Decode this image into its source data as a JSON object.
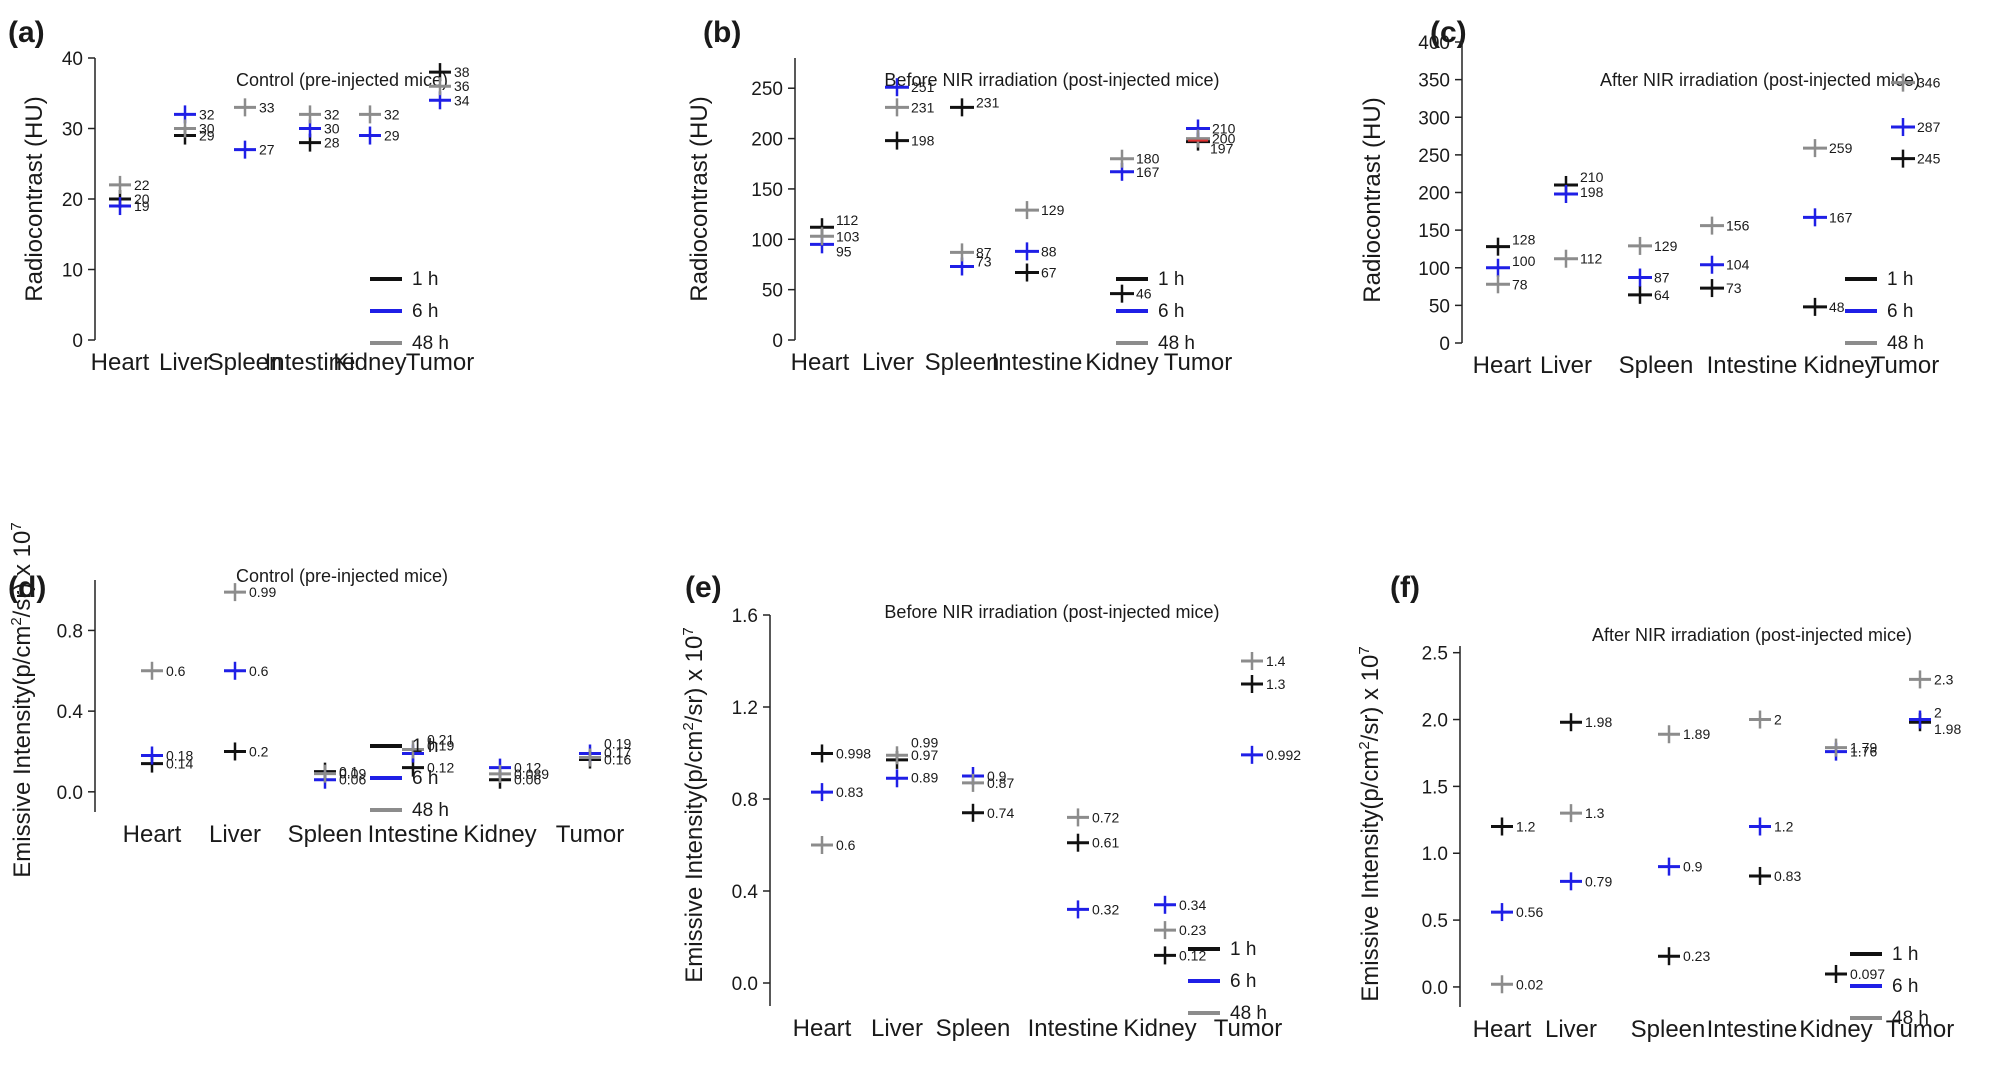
{
  "figure": {
    "colors": {
      "1 h": "#111111",
      "6 h": "#1f1fe6",
      "48 h": "#8c8c8c",
      "accent_red": "#e03030"
    },
    "legend_entries": [
      "1 h",
      "6 h",
      "48 h"
    ]
  },
  "chart_data": [
    {
      "panel": "(a)",
      "type": "scatter",
      "title": "Control (pre-injected mice)",
      "ylabel": "Radiocontrast (HU)",
      "ylim": [
        0,
        40
      ],
      "yticks": [
        0,
        10,
        20,
        30,
        40
      ],
      "categories": [
        "Heart",
        "Liver",
        "Spleen",
        "Intestine",
        "Kidney",
        "Tumor"
      ],
      "series": [
        {
          "name": "1 h",
          "values": [
            20,
            29,
            null,
            28,
            null,
            38
          ],
          "labels": [
            "20",
            "29",
            null,
            "28",
            null,
            "38"
          ]
        },
        {
          "name": "6 h",
          "values": [
            19,
            32,
            27,
            30,
            29,
            34
          ],
          "labels": [
            "19",
            "32",
            "27",
            "30",
            "29",
            "34"
          ]
        },
        {
          "name": "48 h",
          "values": [
            22,
            30,
            33,
            32,
            32,
            36
          ],
          "labels": [
            "22",
            "30",
            "33",
            "32",
            "32",
            "36"
          ]
        }
      ]
    },
    {
      "panel": "(b)",
      "type": "scatter",
      "title": "Before NIR irradiation (post-injected mice)",
      "ylabel": "Radiocontrast (HU)",
      "ylim": [
        0,
        280
      ],
      "yticks": [
        0,
        50,
        100,
        150,
        200,
        250
      ],
      "categories": [
        "Heart",
        "Liver",
        "Spleen",
        "Intestine",
        "Kidney",
        "Tumor"
      ],
      "series": [
        {
          "name": "1 h",
          "values": [
            112,
            198,
            231,
            67,
            46,
            197
          ],
          "labels": [
            "112",
            "198",
            "231",
            "67",
            "46",
            "197"
          ]
        },
        {
          "name": "6 h",
          "values": [
            95,
            251,
            73,
            88,
            167,
            210
          ],
          "labels": [
            "95",
            "251",
            "73",
            "88",
            "167",
            "210"
          ]
        },
        {
          "name": "48 h",
          "values": [
            103,
            231,
            87,
            129,
            180,
            200
          ],
          "labels": [
            "103",
            "231",
            "87",
            "129",
            "180",
            "200"
          ]
        }
      ]
    },
    {
      "panel": "(c)",
      "type": "scatter",
      "title": "After NIR irradiation (post-injected mice)",
      "ylabel": "Radiocontrast (HU)",
      "ylim": [
        0,
        400
      ],
      "yticks": [
        0,
        50,
        100,
        150,
        200,
        250,
        300,
        350,
        400
      ],
      "categories": [
        "Heart",
        "Liver",
        "Spleen",
        "Intestine",
        "Kidney",
        "Tumor"
      ],
      "series": [
        {
          "name": "1 h",
          "values": [
            128,
            210,
            64,
            73,
            48,
            245
          ],
          "labels": [
            "128",
            "210",
            "64",
            "73",
            "48",
            "245"
          ]
        },
        {
          "name": "6 h",
          "values": [
            100,
            198,
            87,
            104,
            167,
            287
          ],
          "labels": [
            "100",
            "198",
            "87",
            "104",
            "167",
            "287"
          ]
        },
        {
          "name": "48 h",
          "values": [
            78,
            112,
            129,
            156,
            259,
            346
          ],
          "labels": [
            "78",
            "112",
            "129",
            "156",
            "259",
            "346"
          ]
        }
      ]
    },
    {
      "panel": "(d)",
      "type": "scatter",
      "title": "Control (pre-injected mice)",
      "ylabel_main": "Emissive Intensity(p/cm",
      "ylabel_sup1": "2",
      "ylabel_mid": "/sr) x 10",
      "ylabel_sup2": "7",
      "ylim": [
        -0.1,
        1.05
      ],
      "yticks": [
        0.0,
        0.4,
        0.8
      ],
      "ytick_labels": [
        "0.0",
        "0.4",
        "0.8"
      ],
      "categories": [
        "Heart",
        "Liver",
        "Spleen",
        "Intestine",
        "Kidney",
        "Tumor"
      ],
      "series": [
        {
          "name": "1 h",
          "values": [
            0.14,
            0.2,
            0.1,
            0.12,
            0.06,
            0.16
          ],
          "labels": [
            "0.14",
            "0.2",
            "0.1",
            "0.12",
            "0.06",
            "0.16"
          ]
        },
        {
          "name": "6 h",
          "values": [
            0.18,
            0.6,
            0.06,
            0.19,
            0.12,
            0.19
          ],
          "labels": [
            "0.18",
            "0.6",
            "0.06",
            "0.19",
            "0.12",
            "0.19"
          ]
        },
        {
          "name": "48 h",
          "values": [
            0.6,
            0.99,
            0.09,
            0.21,
            0.089,
            0.17
          ],
          "labels": [
            "0.6",
            "0.99",
            "0.09",
            "0.21",
            "0.089",
            "0.17"
          ]
        }
      ]
    },
    {
      "panel": "(e)",
      "type": "scatter",
      "title": "Before NIR irradiation (post-injected mice)",
      "ylabel_main": "Emissive Intensity(p/cm",
      "ylabel_sup1": "2",
      "ylabel_mid": "/sr) x 10",
      "ylabel_sup2": "7",
      "ylim": [
        -0.1,
        1.6
      ],
      "yticks": [
        0.0,
        0.4,
        0.8,
        1.2,
        1.6
      ],
      "ytick_labels": [
        "0.0",
        "0.4",
        "0.8",
        "1.2",
        "1.6"
      ],
      "categories": [
        "Heart",
        "Liver",
        "Spleen",
        "Intestine",
        "Kidney",
        "Tumor"
      ],
      "series": [
        {
          "name": "1 h",
          "values": [
            0.998,
            0.97,
            0.74,
            0.61,
            0.12,
            1.3
          ],
          "labels": [
            "0.998",
            "0.97",
            "0.74",
            "0.61",
            "0.12",
            "1.3"
          ]
        },
        {
          "name": "6 h",
          "values": [
            0.83,
            0.89,
            0.9,
            0.32,
            0.34,
            0.992
          ],
          "labels": [
            "0.83",
            "0.89",
            "0.9",
            "0.32",
            "0.34",
            "0.992"
          ]
        },
        {
          "name": "48 h",
          "values": [
            0.6,
            0.99,
            0.87,
            0.72,
            0.23,
            1.4
          ],
          "labels": [
            "0.6",
            "0.99",
            "0.87",
            "0.72",
            "0.23",
            "1.4"
          ]
        }
      ]
    },
    {
      "panel": "(f)",
      "type": "scatter",
      "title": "After NIR irradiation (post-injected mice)",
      "ylabel_main": "Emissive Intensity(p/cm",
      "ylabel_sup1": "2",
      "ylabel_mid": "/sr) x 10",
      "ylabel_sup2": "7",
      "ylim": [
        -0.15,
        2.55
      ],
      "yticks": [
        0.0,
        0.5,
        1.0,
        1.5,
        2.0,
        2.5
      ],
      "ytick_labels": [
        "0.0",
        "0.5",
        "1.0",
        "1.5",
        "2.0",
        "2.5"
      ],
      "categories": [
        "Heart",
        "Liver",
        "Spleen",
        "Intestine",
        "Kidney",
        "Tumor"
      ],
      "series": [
        {
          "name": "1 h",
          "values": [
            1.2,
            1.98,
            0.23,
            0.83,
            0.097,
            1.98
          ],
          "labels": [
            "1.2",
            "1.98",
            "0.23",
            "0.83",
            "0.097",
            "1.98"
          ]
        },
        {
          "name": "6 h",
          "values": [
            0.56,
            0.79,
            0.9,
            1.2,
            1.76,
            2.0
          ],
          "labels": [
            "0.56",
            "0.79",
            "0.9",
            "1.2",
            "1.76",
            "2"
          ]
        },
        {
          "name": "48 h",
          "values": [
            0.02,
            1.3,
            1.89,
            2.0,
            1.79,
            2.3
          ],
          "labels": [
            "0.02",
            "1.3",
            "1.89",
            "2",
            "1.79",
            "2.3"
          ]
        }
      ]
    }
  ]
}
